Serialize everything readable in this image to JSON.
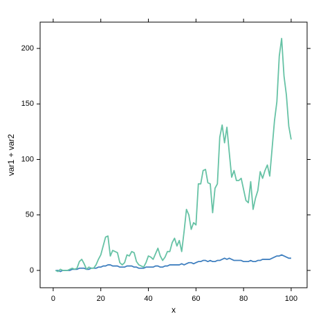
{
  "chart_data": {
    "type": "line",
    "x_label": "x",
    "y_label": "var1 + var2",
    "x": [
      1,
      2,
      3,
      4,
      5,
      6,
      7,
      8,
      9,
      10,
      11,
      12,
      13,
      14,
      15,
      16,
      17,
      18,
      19,
      20,
      21,
      22,
      23,
      24,
      25,
      26,
      27,
      28,
      29,
      30,
      31,
      32,
      33,
      34,
      35,
      36,
      37,
      38,
      39,
      40,
      41,
      42,
      43,
      44,
      45,
      46,
      47,
      48,
      49,
      50,
      51,
      52,
      53,
      54,
      55,
      56,
      57,
      58,
      59,
      60,
      61,
      62,
      63,
      64,
      65,
      66,
      67,
      68,
      69,
      70,
      71,
      72,
      73,
      74,
      75,
      76,
      77,
      78,
      79,
      80,
      81,
      82,
      83,
      84,
      85,
      86,
      87,
      88,
      89,
      90,
      91,
      92,
      93,
      94,
      95,
      96,
      97,
      98,
      99,
      100
    ],
    "series": [
      {
        "color": "#3f7fbf",
        "values": [
          0,
          0,
          -1,
          0,
          0,
          0,
          0,
          1,
          1,
          1,
          2,
          2,
          2,
          1,
          1,
          2,
          2,
          2,
          3,
          3,
          4,
          4,
          5,
          5,
          4,
          4,
          4,
          3,
          3,
          3,
          4,
          4,
          4,
          3,
          3,
          2,
          2,
          2,
          3,
          3,
          3,
          3,
          4,
          4,
          3,
          3,
          4,
          4,
          5,
          5,
          5,
          5,
          5,
          6,
          5,
          6,
          7,
          7,
          6,
          7,
          8,
          8,
          9,
          9,
          8,
          9,
          8,
          8,
          9,
          9,
          10,
          11,
          10,
          11,
          10,
          9,
          9,
          9,
          9,
          8,
          8,
          8,
          9,
          8,
          8,
          9,
          9,
          10,
          10,
          10,
          10,
          11,
          12,
          13,
          13,
          14,
          13,
          12,
          11,
          11
        ]
      },
      {
        "color": "#66c2a5",
        "values": [
          0,
          -1,
          1,
          0,
          0,
          0,
          1,
          2,
          1,
          2,
          8,
          10,
          6,
          1,
          3,
          2,
          2,
          5,
          10,
          14,
          22,
          30,
          31,
          13,
          18,
          17,
          16,
          7,
          5,
          7,
          14,
          13,
          17,
          16,
          8,
          5,
          4,
          3,
          7,
          13,
          12,
          10,
          15,
          20,
          13,
          9,
          12,
          17,
          17,
          25,
          29,
          22,
          27,
          17,
          35,
          55,
          50,
          37,
          43,
          41,
          78,
          78,
          90,
          91,
          79,
          78,
          52,
          74,
          78,
          120,
          131,
          115,
          129,
          106,
          84,
          90,
          81,
          81,
          83,
          73,
          63,
          61,
          80,
          55,
          65,
          72,
          89,
          83,
          90,
          95,
          85,
          110,
          135,
          152,
          193,
          209,
          175,
          158,
          130,
          118
        ]
      }
    ],
    "xlim": [
      -5.5,
      106.7
    ],
    "ylim": [
      -15.6,
      223.7
    ],
    "xticks": [
      0,
      20,
      40,
      60,
      80,
      100
    ],
    "yticks": [
      0,
      50,
      100,
      150,
      200
    ]
  }
}
